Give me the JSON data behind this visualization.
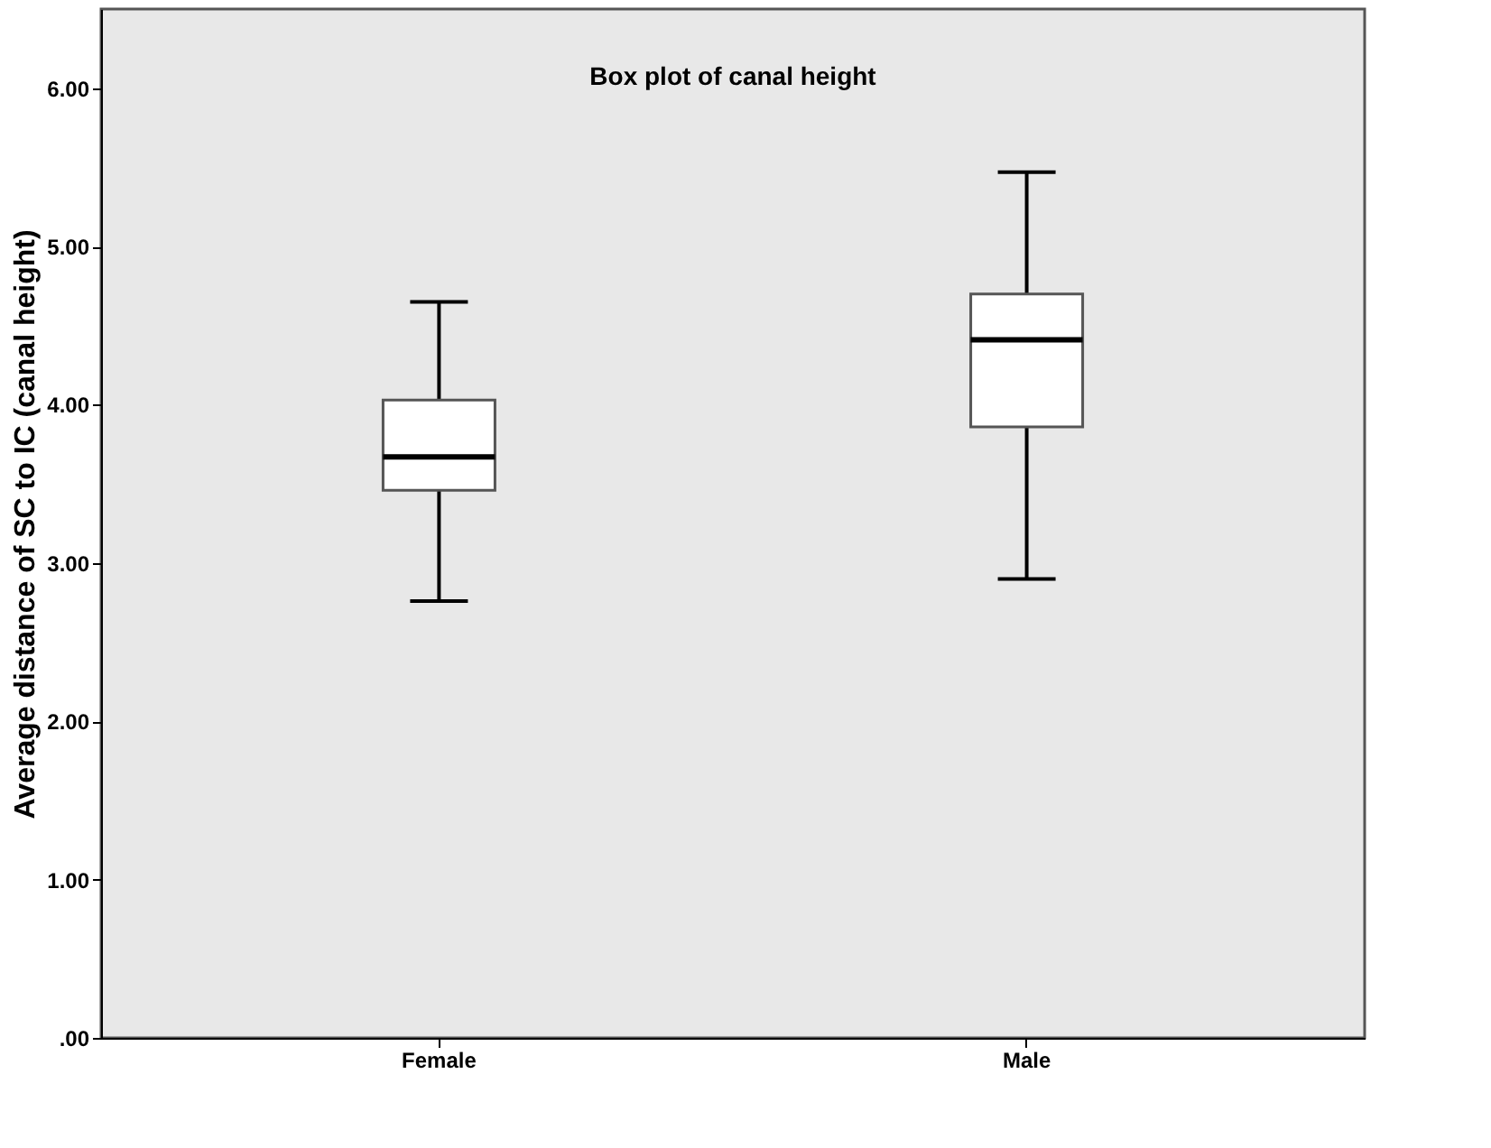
{
  "chart_data": {
    "type": "box",
    "title": "Box plot of canal height",
    "ylabel": "Average distance of SC to IC (canal height)",
    "categories": [
      "Female",
      "Male"
    ],
    "boxes": [
      {
        "low": 2.76,
        "q1": 3.46,
        "median": 3.67,
        "q3": 4.03,
        "high": 4.65
      },
      {
        "low": 2.9,
        "q1": 3.86,
        "median": 4.41,
        "q3": 4.7,
        "high": 5.47
      }
    ],
    "ylim": [
      0,
      6.5
    ],
    "yticks": [
      {
        "value": 0,
        "label": ".00"
      },
      {
        "value": 1,
        "label": "1.00"
      },
      {
        "value": 2,
        "label": "2.00"
      },
      {
        "value": 3,
        "label": "3.00"
      },
      {
        "value": 4,
        "label": "4.00"
      },
      {
        "value": 5,
        "label": "5.00"
      },
      {
        "value": 6,
        "label": "6.00"
      }
    ],
    "grid": false
  }
}
